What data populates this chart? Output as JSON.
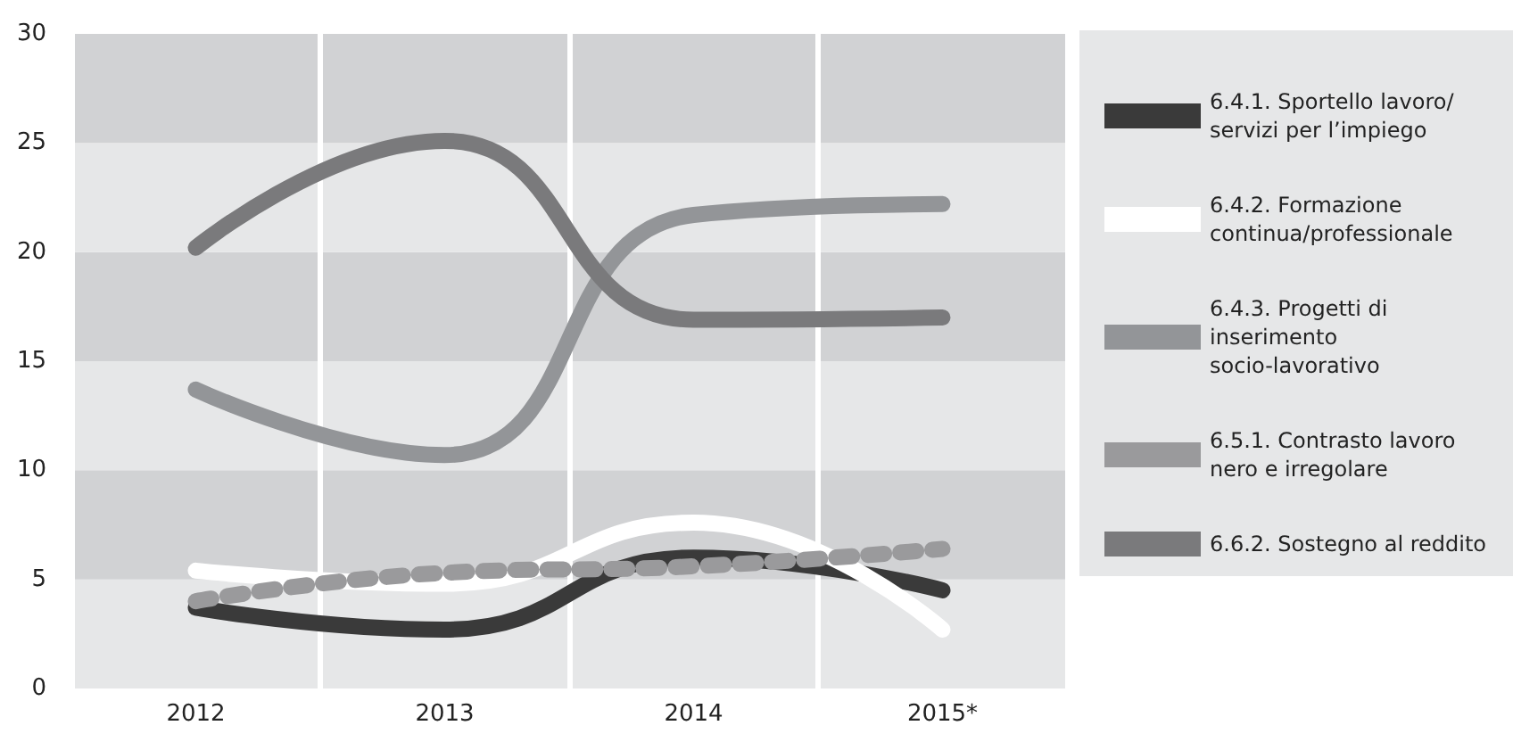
{
  "chart_data": {
    "type": "line",
    "categories": [
      "2012",
      "2013",
      "2014",
      "2015*"
    ],
    "series": [
      {
        "name": "6.4.1. Sportello lavoro/ servizi per l’impiego",
        "color": "#3a3a3a",
        "values": [
          3.7,
          2.7,
          6.0,
          4.5
        ]
      },
      {
        "name": "6.4.2. Formazione continua/professionale",
        "color": "#ffffff",
        "values": [
          5.4,
          4.8,
          7.6,
          2.7
        ]
      },
      {
        "name": "6.4.3. Progetti di inserimento socio-lavorativo",
        "color": "#939598",
        "values": [
          13.7,
          10.7,
          21.7,
          22.2
        ]
      },
      {
        "name": "6.5.1. Contrasto lavoro nero e irregolare",
        "color": "#9a9a9c",
        "line_style": "dotted",
        "values": [
          4.0,
          5.3,
          5.6,
          6.4
        ]
      },
      {
        "name": "6.6.2. Sostegno al reddito",
        "color": "#7a7a7c",
        "values": [
          20.2,
          25.1,
          16.9,
          17.0
        ]
      }
    ],
    "ylim": [
      0,
      30
    ],
    "yticks": [
      0,
      5,
      10,
      15,
      20,
      25,
      30
    ],
    "grid": true,
    "legend": "right",
    "marker": "none"
  }
}
